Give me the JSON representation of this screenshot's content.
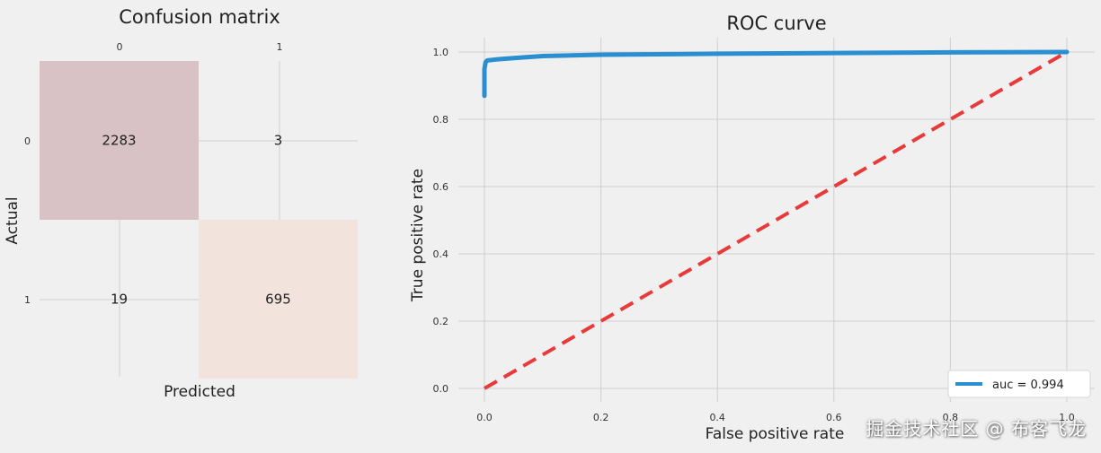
{
  "chart_data": [
    {
      "type": "heatmap",
      "title": "Confusion matrix",
      "xlabel": "Predicted",
      "ylabel": "Actual",
      "x_tick_labels": [
        "0",
        "1"
      ],
      "y_tick_labels": [
        "0",
        "1"
      ],
      "matrix": [
        [
          2283,
          3
        ],
        [
          19,
          695
        ]
      ],
      "cell_colors": [
        [
          "#d8c2c6",
          "#f0f0f0"
        ],
        [
          "#f0f0f0",
          "#f3e3dd"
        ]
      ],
      "grid": true
    },
    {
      "type": "line",
      "title": "ROC curve",
      "xlabel": "False positive rate",
      "ylabel": "True positive rate",
      "xlim": [
        -0.05,
        1.05
      ],
      "ylim": [
        -0.05,
        1.05
      ],
      "x_ticks": [
        "0.0",
        "0.2",
        "0.4",
        "0.6",
        "0.8",
        "1.0"
      ],
      "y_ticks": [
        "0.0",
        "0.2",
        "0.4",
        "0.6",
        "0.8",
        "1.0"
      ],
      "grid": true,
      "legend_position": "bottom-right",
      "series": [
        {
          "name": "auc = 0.994",
          "color": "#2a8fd0",
          "x": [
            0.0,
            0.0,
            0.002,
            0.005,
            0.02,
            0.05,
            0.1,
            0.2,
            0.4,
            0.6,
            0.8,
            1.0
          ],
          "y": [
            0.87,
            0.95,
            0.97,
            0.975,
            0.978,
            0.982,
            0.988,
            0.992,
            0.995,
            0.997,
            0.999,
            1.0
          ]
        },
        {
          "name": "",
          "color": "#e83a3a",
          "dashed": true,
          "x": [
            0.0,
            1.0
          ],
          "y": [
            0.0,
            1.0
          ]
        }
      ]
    }
  ],
  "watermark": "掘金技术社区 @ 布客飞龙"
}
